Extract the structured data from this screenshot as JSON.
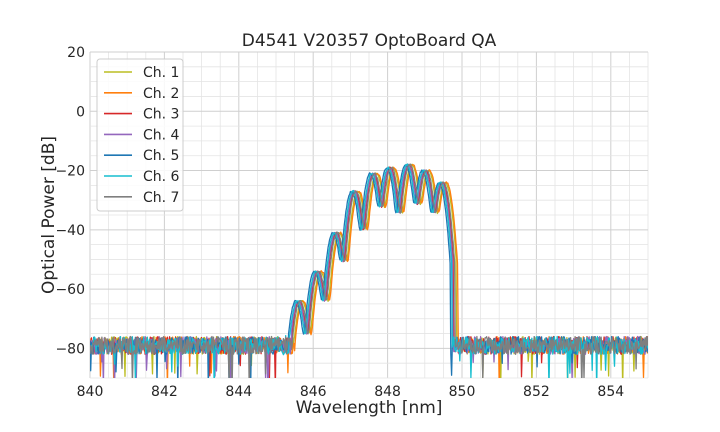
{
  "chart_data": {
    "type": "line",
    "title": "D4541 V20357 OptoBoard QA",
    "xlabel": "Wavelength [nm]",
    "ylabel": "Optical Power [dB]",
    "xlim": [
      840,
      855
    ],
    "ylim": [
      -90,
      20
    ],
    "xticks": [
      840,
      842,
      844,
      846,
      848,
      850,
      852,
      854
    ],
    "yticks": [
      20,
      0,
      -20,
      -40,
      -60,
      -80
    ],
    "ytick_labels": [
      "20",
      "0",
      "−20",
      "−40",
      "−60",
      "−80"
    ],
    "grid": true,
    "legend_position": "top-left",
    "noise_floor_db": -76,
    "mode_peaks_nm": [
      845.6,
      846.1,
      846.6,
      847.1,
      847.6,
      848.05,
      848.55,
      849.0,
      849.45
    ],
    "mode_envelope_db": [
      -64,
      -54,
      -41,
      -27,
      -21,
      -19,
      -18,
      -20,
      -24
    ],
    "series": [
      {
        "name": "Ch. 1",
        "color": "#bcbd22",
        "shift_nm": 0.1
      },
      {
        "name": "Ch. 2",
        "color": "#ff7f0e",
        "shift_nm": 0.13
      },
      {
        "name": "Ch. 3",
        "color": "#d62728",
        "shift_nm": 0.02
      },
      {
        "name": "Ch. 4",
        "color": "#9467bd",
        "shift_nm": 0.0
      },
      {
        "name": "Ch. 5",
        "color": "#1f77b4",
        "shift_nm": -0.07
      },
      {
        "name": "Ch. 6",
        "color": "#17becf",
        "shift_nm": -0.03
      },
      {
        "name": "Ch. 7",
        "color": "#7f7f7f",
        "shift_nm": 0.05
      }
    ]
  }
}
